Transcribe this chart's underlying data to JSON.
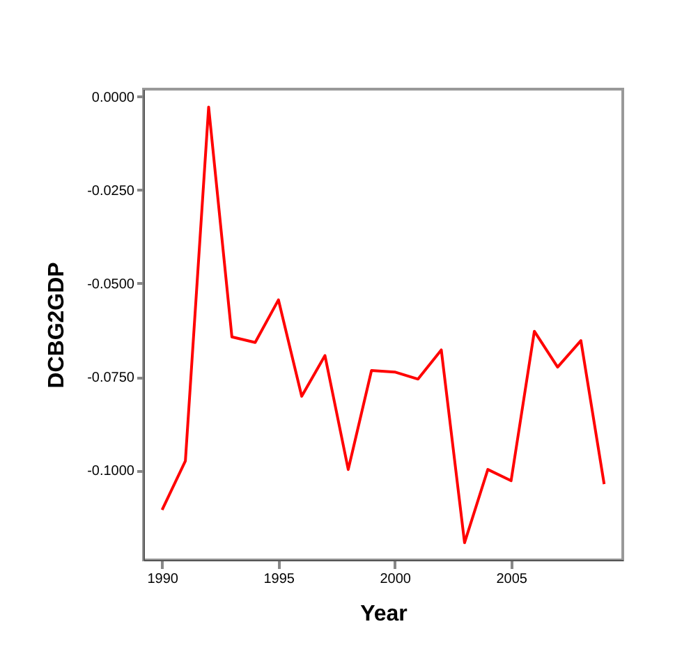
{
  "chart_data": {
    "type": "line",
    "xlabel": "Year",
    "ylabel": "DCBG2GDP",
    "x": [
      1990,
      1991,
      1992,
      1993,
      1994,
      1995,
      1996,
      1997,
      1998,
      1999,
      2000,
      2001,
      2002,
      2003,
      2004,
      2005,
      2006,
      2007,
      2008,
      2009
    ],
    "series": [
      {
        "color": "#ff0000",
        "values": [
          -0.1106,
          -0.0975,
          -0.0028,
          -0.0643,
          -0.0658,
          -0.0544,
          -0.0802,
          -0.0693,
          -0.0998,
          -0.0733,
          -0.0737,
          -0.0756,
          -0.0678,
          -0.1194,
          -0.0998,
          -0.1028,
          -0.0628,
          -0.0724,
          -0.0653,
          -0.1037
        ]
      }
    ],
    "xlim": [
      1989.2,
      2009.8
    ],
    "xticks": [
      1990,
      1995,
      2000,
      2005
    ],
    "ylim": [
      -0.124,
      0.002
    ],
    "yticks": [
      {
        "value": 0,
        "label": "0.0000"
      },
      {
        "value": -0.025,
        "label": "-0.0250"
      },
      {
        "value": -0.05,
        "label": "-0.0500"
      },
      {
        "value": -0.075,
        "label": "-0.0750"
      },
      {
        "value": -0.1,
        "label": "-0.1000"
      }
    ],
    "grid": false,
    "marker": "none",
    "line_style": "solid"
  }
}
